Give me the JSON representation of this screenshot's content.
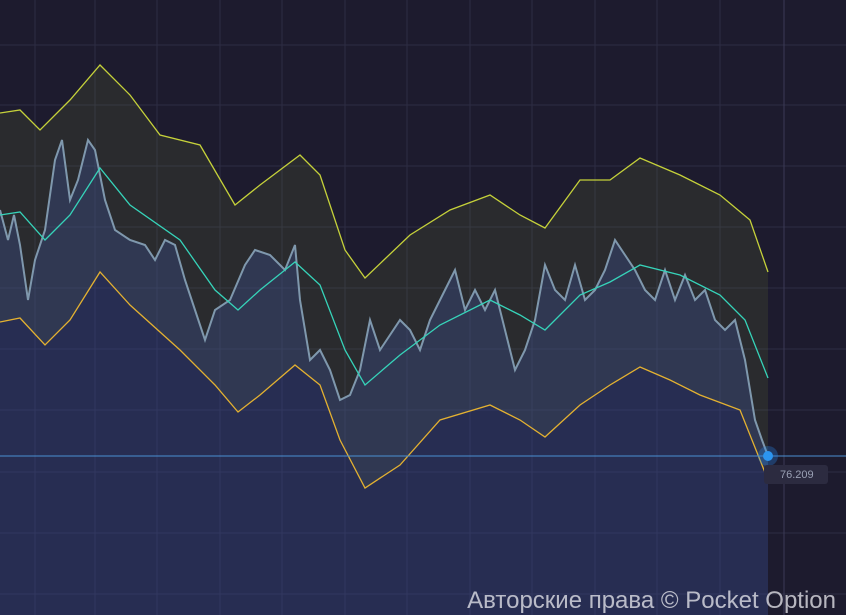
{
  "price_label": "76.209",
  "watermark": "Авторские права © Pocket Option"
}
